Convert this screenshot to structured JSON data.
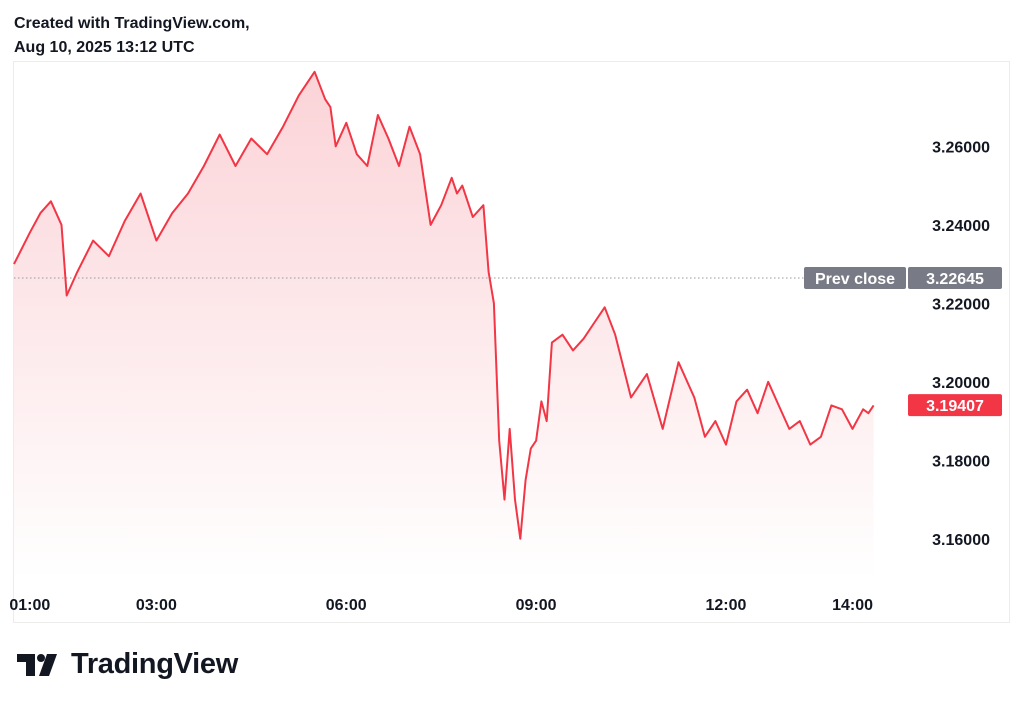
{
  "header": {
    "line1": "Created with TradingView.com,",
    "line2": "Aug 10, 2025 13:12 UTC"
  },
  "brand": {
    "name": "TradingView",
    "logo_icon": "tradingview-logo-icon"
  },
  "colors": {
    "line": "#f23645",
    "fill_top": "#fbd3d7",
    "fill_bottom": "#ffffff",
    "prev_close_tag": "#787b86",
    "price_tag": "#f23645",
    "dotted_line": "#9598a1"
  },
  "chart_data": {
    "type": "area",
    "series": [
      {
        "x": [
          "00:45",
          "01:00",
          "01:10",
          "01:20",
          "01:30",
          "01:35",
          "01:45",
          "02:00",
          "02:15",
          "02:30",
          "02:45",
          "03:00",
          "03:15",
          "03:30",
          "03:45",
          "04:00",
          "04:15",
          "04:30",
          "04:45",
          "05:00",
          "05:15",
          "05:30",
          "05:40",
          "05:45",
          "05:50",
          "06:00",
          "06:10",
          "06:20",
          "06:30",
          "06:40",
          "06:50",
          "07:00",
          "07:10",
          "07:20",
          "07:30",
          "07:40",
          "07:45",
          "07:50",
          "08:00",
          "08:10",
          "08:15",
          "08:20",
          "08:25",
          "08:30",
          "08:35",
          "08:40",
          "08:45",
          "08:50",
          "08:55",
          "09:00",
          "09:05",
          "09:10",
          "09:15",
          "09:25",
          "09:35",
          "09:45",
          "09:55",
          "10:05",
          "10:15",
          "10:30",
          "10:45",
          "11:00",
          "11:15",
          "11:30",
          "11:40",
          "11:50",
          "12:00",
          "12:10",
          "12:20",
          "12:30",
          "12:40",
          "12:50",
          "13:00",
          "13:10",
          "13:20",
          "13:30",
          "13:40",
          "13:50",
          "14:00",
          "14:10",
          "14:15",
          "14:20"
        ],
        "values": [
          3.23,
          3.238,
          3.243,
          3.246,
          3.24,
          3.222,
          3.228,
          3.236,
          3.232,
          3.241,
          3.248,
          3.236,
          3.243,
          3.248,
          3.255,
          3.263,
          3.255,
          3.262,
          3.258,
          3.265,
          3.273,
          3.279,
          3.272,
          3.27,
          3.26,
          3.266,
          3.258,
          3.255,
          3.268,
          3.262,
          3.255,
          3.265,
          3.258,
          3.24,
          3.245,
          3.252,
          3.248,
          3.25,
          3.242,
          3.245,
          3.228,
          3.22,
          3.185,
          3.17,
          3.188,
          3.17,
          3.16,
          3.175,
          3.183,
          3.185,
          3.195,
          3.19,
          3.21,
          3.212,
          3.208,
          3.211,
          3.215,
          3.219,
          3.212,
          3.196,
          3.202,
          3.188,
          3.205,
          3.196,
          3.186,
          3.19,
          3.184,
          3.195,
          3.198,
          3.192,
          3.2,
          3.194,
          3.188,
          3.19,
          3.184,
          3.186,
          3.194,
          3.193,
          3.188,
          3.193,
          3.192,
          3.194
        ]
      }
    ],
    "x_ticks": [
      "01:00",
      "03:00",
      "06:00",
      "09:00",
      "12:00",
      "14:00"
    ],
    "y_ticks": [
      "3.26000",
      "3.24000",
      "3.22000",
      "3.20000",
      "3.18000",
      "3.16000"
    ],
    "y_tick_values": [
      3.26,
      3.24,
      3.22,
      3.2,
      3.18,
      3.16
    ],
    "ylim": [
      3.1495,
      3.2815
    ],
    "xlim": [
      "00:45",
      "14:45"
    ],
    "prev_close": {
      "label": "Prev close",
      "value": 3.22645,
      "value_text": "3.22645"
    },
    "last_price": {
      "value": 3.19407,
      "value_text": "3.19407"
    },
    "grid": false
  }
}
